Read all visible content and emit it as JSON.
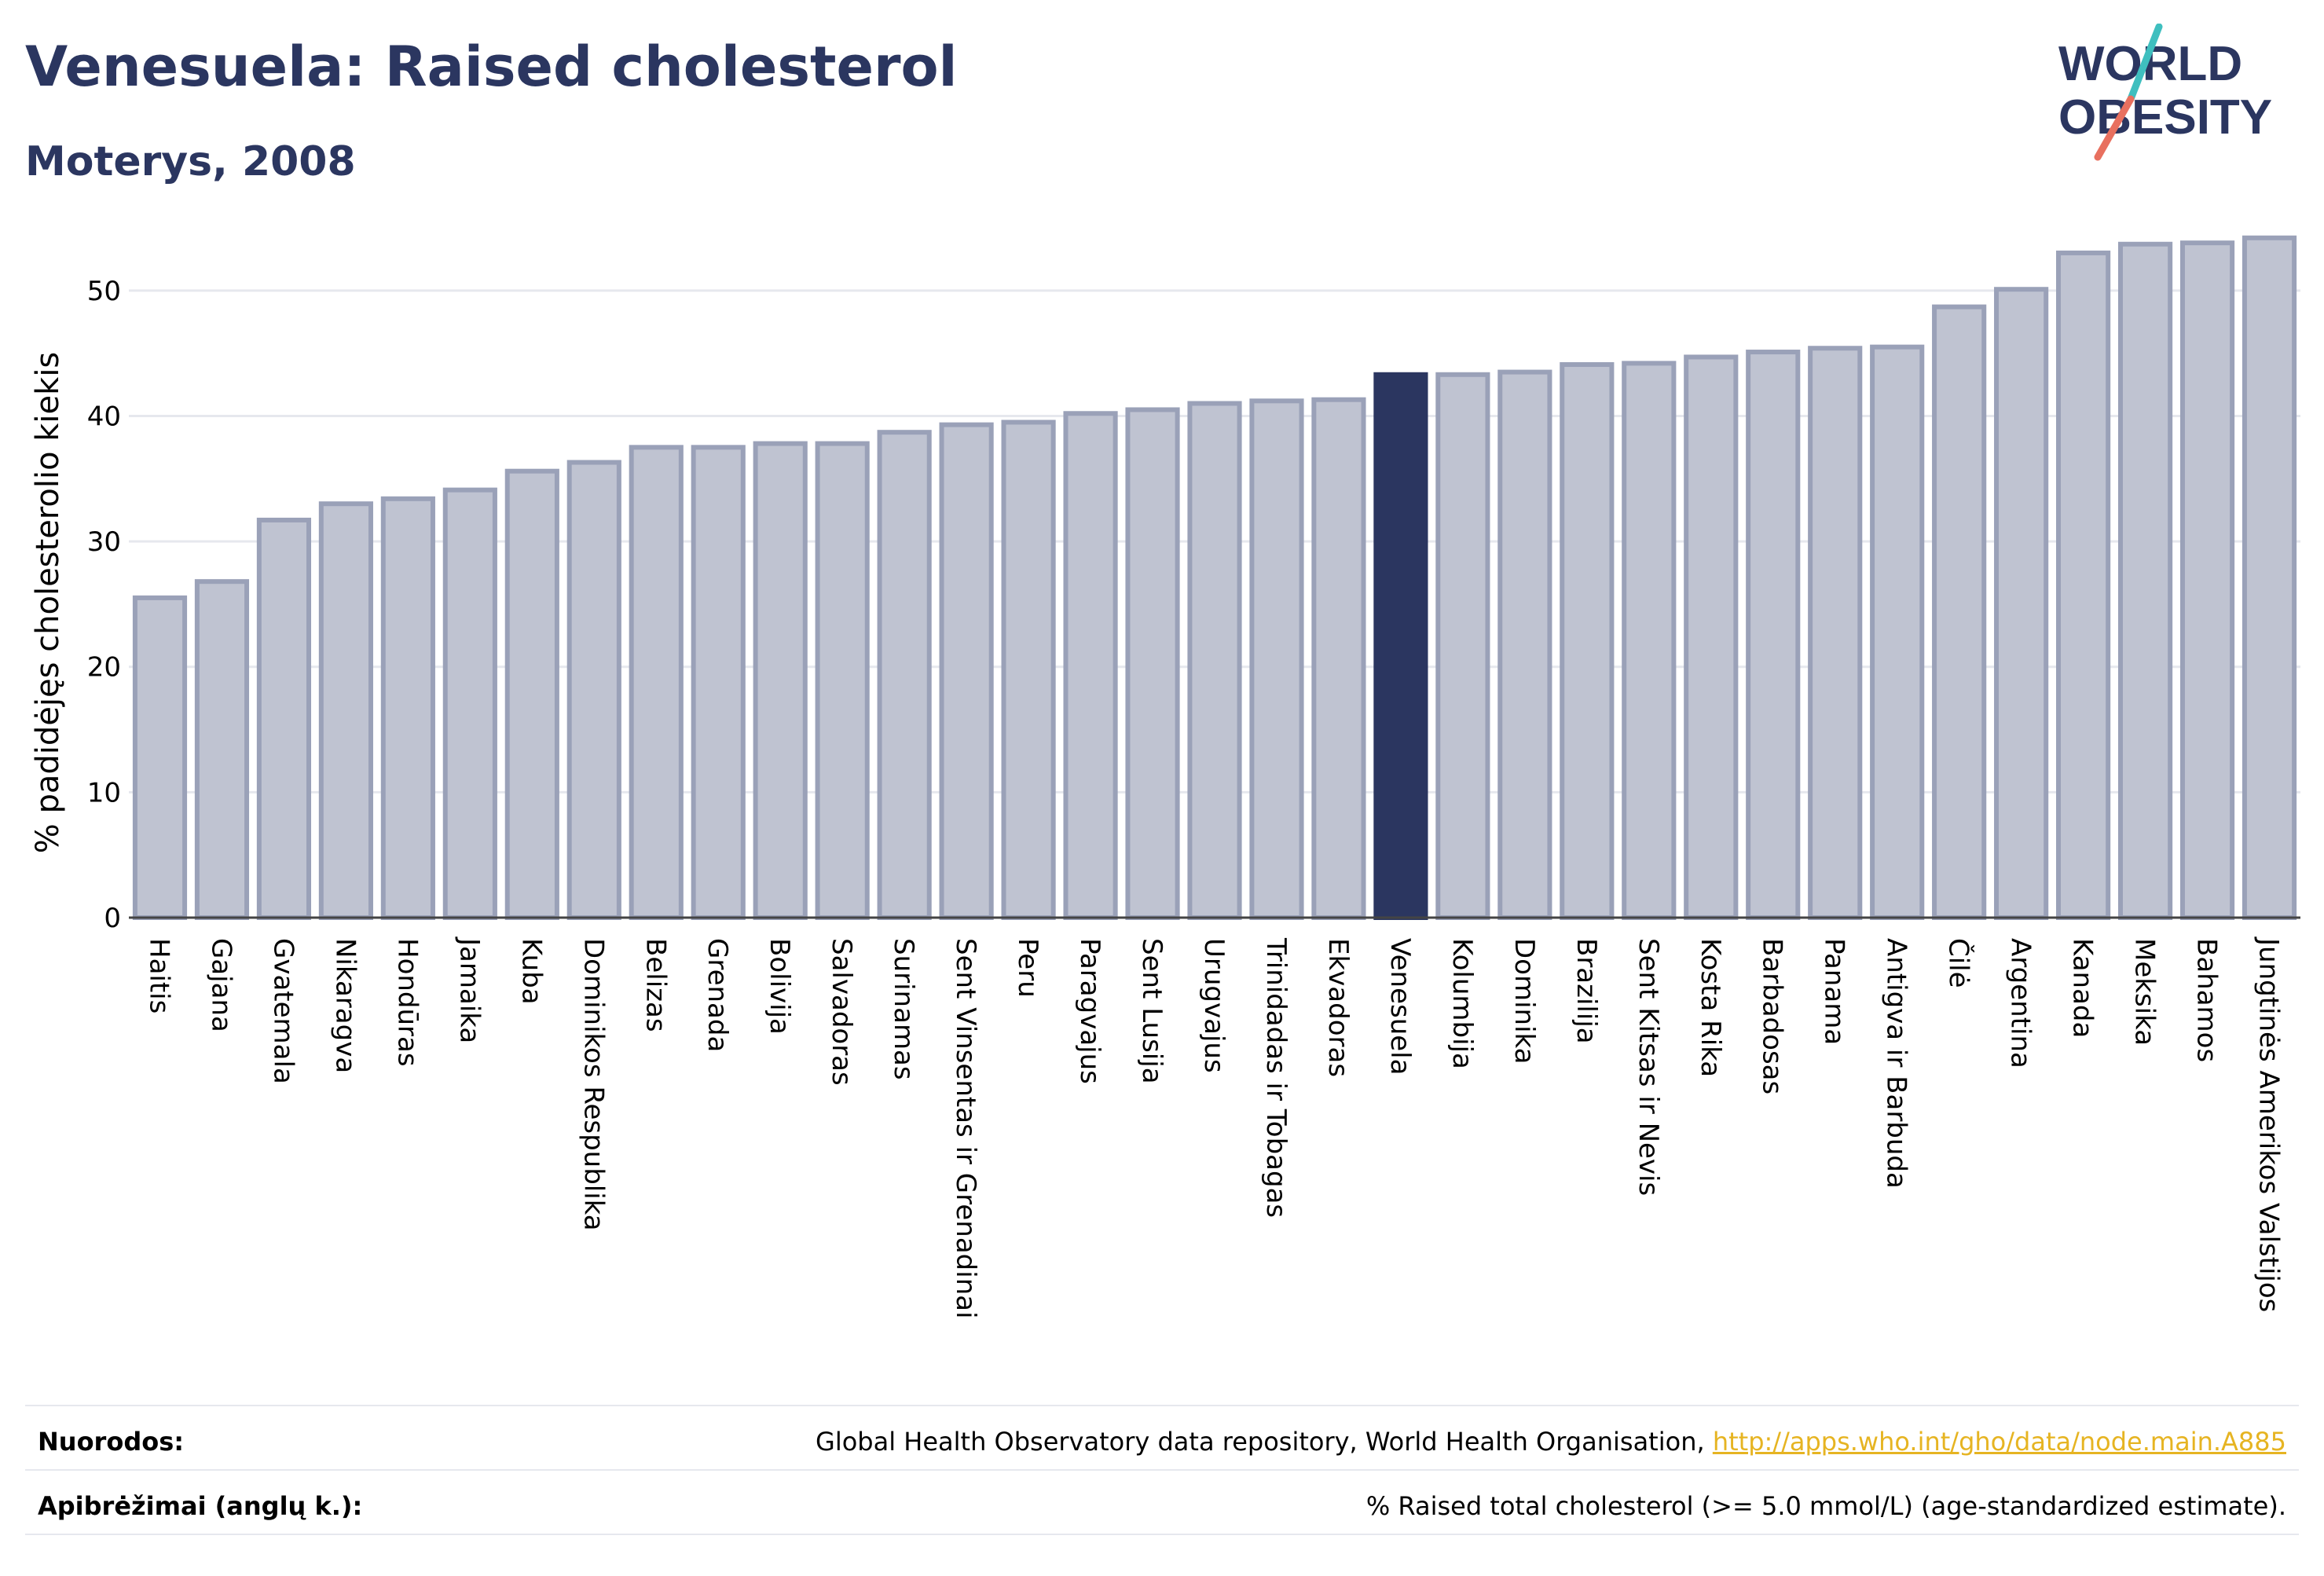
{
  "header": {
    "title": "Venesuela: Raised cholesterol",
    "subtitle": "Moterys, 2008"
  },
  "logo": {
    "line1": "WORLD",
    "line2": "OBESITY"
  },
  "colors": {
    "bar_default": "#bfc3d1",
    "bar_default_stroke": "#9aa1b8",
    "bar_highlight": "#2b3660",
    "text": "#2b3660",
    "grid": "#e6e8ee",
    "link": "#e6b422",
    "logo_slash_teal": "#3fbfbf",
    "logo_slash_coral": "#e8705f"
  },
  "chart_data": {
    "type": "bar",
    "title": "Venesuela: Raised cholesterol",
    "subtitle": "Moterys, 2008",
    "ylabel": "% padidėjęs cholesterolio kiekis",
    "xlabel": "",
    "ylim": [
      0,
      55
    ],
    "yticks": [
      0,
      10,
      20,
      30,
      40,
      50
    ],
    "grid": true,
    "highlight": "Venesuela",
    "categories": [
      "Haitis",
      "Gajana",
      "Gvatemala",
      "Nikaragva",
      "Hondūras",
      "Jamaika",
      "Kuba",
      "Dominikos Respublika",
      "Belizas",
      "Grenada",
      "Bolivija",
      "Salvadoras",
      "Surinamas",
      "Sent Vinsentas ir Grenadinai",
      "Peru",
      "Paragvajus",
      "Sent Lusija",
      "Urugvajus",
      "Trinidadas ir Tobagas",
      "Ekvadoras",
      "Venesuela",
      "Kolumbija",
      "Dominika",
      "Brazilija",
      "Sent Kitsas ir Nevis",
      "Kosta Rika",
      "Barbadosas",
      "Panama",
      "Antigva ir Barbuda",
      "Čilė",
      "Argentina",
      "Kanada",
      "Meksika",
      "Bahamos",
      "Jungtinės Amerikos Valstijos"
    ],
    "values": [
      25.5,
      26.8,
      31.7,
      33.0,
      33.4,
      34.1,
      35.6,
      36.3,
      37.5,
      37.5,
      37.8,
      37.8,
      38.7,
      39.3,
      39.5,
      40.2,
      40.5,
      41.0,
      41.2,
      41.3,
      43.3,
      43.3,
      43.5,
      44.1,
      44.2,
      44.7,
      45.1,
      45.4,
      45.5,
      48.7,
      50.1,
      53.0,
      53.7,
      53.8,
      54.2
    ]
  },
  "footer": {
    "sources_label": "Nuorodos:",
    "sources_text": "Global Health Observatory data repository, World Health Organisation, ",
    "sources_link": "http://apps.who.int/gho/data/node.main.A885",
    "definitions_label": "Apibrėžimai (anglų k.):",
    "definitions_text": "% Raised total cholesterol (>= 5.0 mmol/L) (age-standardized estimate)."
  }
}
